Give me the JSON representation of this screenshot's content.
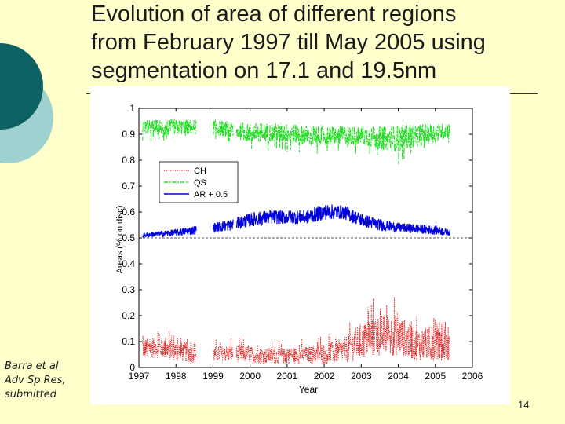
{
  "slide": {
    "title_lines": [
      "Evolution of area of different regions",
      "from February 1997 till May 2005 using",
      "segmentation on 17.1 and 19.5nm"
    ],
    "citation_lines": [
      "Barra et al",
      "Adv Sp Res,",
      "submitted"
    ],
    "page_number": "14",
    "colors": {
      "background": "#ffffcc",
      "deco_dark": "#0e6163",
      "deco_light": "#9ed1cf"
    }
  },
  "chart_data": {
    "type": "line",
    "title": "",
    "xlabel": "Year",
    "ylabel": "Areas (% on disc)",
    "xlim": [
      1997,
      2006
    ],
    "ylim": [
      0,
      1
    ],
    "xticks": [
      1997,
      1998,
      1999,
      2000,
      2001,
      2002,
      2003,
      2004,
      2005,
      2006
    ],
    "yticks": [
      0,
      0.1,
      0.2,
      0.3,
      0.4,
      0.5,
      0.6,
      0.7,
      0.8,
      0.9,
      1
    ],
    "reference_line": 0.5,
    "legend_position": "upper-left",
    "data_range": [
      1997.1,
      2005.4
    ],
    "gaps": [
      [
        1998.55,
        1999.0
      ],
      [
        1999.55,
        1999.63
      ]
    ],
    "series": [
      {
        "name": "CH",
        "color": "#dd2222",
        "style": "dotted",
        "x": [
          1997.1,
          1997.5,
          1998.0,
          1998.5,
          1999.0,
          1999.5,
          2000.0,
          2000.5,
          2001.0,
          2001.5,
          2002.0,
          2002.5,
          2003.0,
          2003.5,
          2004.0,
          2004.5,
          2005.0,
          2005.4
        ],
        "mean": [
          0.06,
          0.065,
          0.05,
          0.045,
          0.04,
          0.045,
          0.04,
          0.035,
          0.035,
          0.04,
          0.04,
          0.05,
          0.08,
          0.1,
          0.1,
          0.07,
          0.07,
          0.06
        ],
        "spread": [
          0.05,
          0.05,
          0.05,
          0.05,
          0.04,
          0.04,
          0.04,
          0.04,
          0.04,
          0.04,
          0.05,
          0.06,
          0.09,
          0.1,
          0.1,
          0.08,
          0.08,
          0.06
        ]
      },
      {
        "name": "QS",
        "color": "#22dd22",
        "style": "dashdot",
        "x": [
          1997.1,
          1997.5,
          1998.0,
          1998.5,
          1999.0,
          1999.5,
          2000.0,
          2000.5,
          2001.0,
          2001.5,
          2002.0,
          2002.5,
          2003.0,
          2003.5,
          2004.0,
          2004.5,
          2005.0,
          2005.4
        ],
        "mean": [
          0.93,
          0.93,
          0.93,
          0.93,
          0.93,
          0.92,
          0.91,
          0.91,
          0.91,
          0.9,
          0.9,
          0.9,
          0.9,
          0.89,
          0.89,
          0.9,
          0.91,
          0.92
        ],
        "spread": [
          0.04,
          0.04,
          0.04,
          0.04,
          0.04,
          0.04,
          0.05,
          0.05,
          0.05,
          0.05,
          0.05,
          0.05,
          0.05,
          0.06,
          0.07,
          0.06,
          0.05,
          0.04
        ]
      },
      {
        "name": "AR + 0.5",
        "color": "#0000dd",
        "style": "solid",
        "x": [
          1997.1,
          1997.5,
          1998.0,
          1998.5,
          1999.0,
          1999.5,
          2000.0,
          2000.5,
          2001.0,
          2001.5,
          2002.0,
          2002.5,
          2003.0,
          2003.5,
          2004.0,
          2004.5,
          2005.0,
          2005.4
        ],
        "mean": [
          0.51,
          0.515,
          0.52,
          0.53,
          0.54,
          0.55,
          0.57,
          0.58,
          0.58,
          0.58,
          0.6,
          0.6,
          0.57,
          0.55,
          0.54,
          0.535,
          0.53,
          0.52
        ],
        "spread": [
          0.01,
          0.012,
          0.015,
          0.02,
          0.02,
          0.025,
          0.03,
          0.03,
          0.03,
          0.03,
          0.035,
          0.03,
          0.03,
          0.025,
          0.02,
          0.02,
          0.02,
          0.012
        ]
      }
    ]
  }
}
